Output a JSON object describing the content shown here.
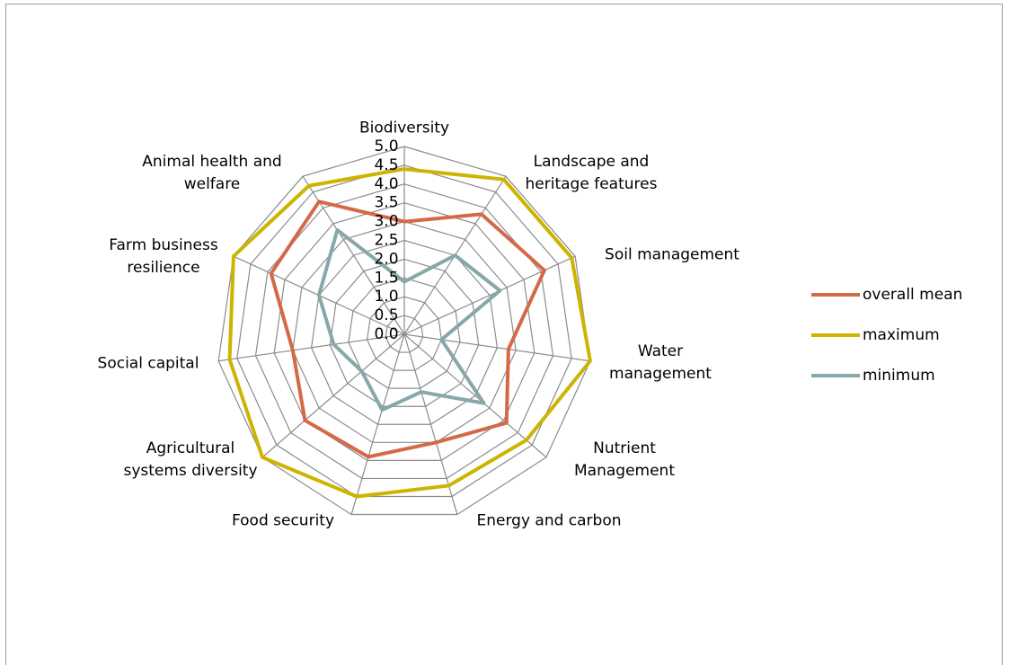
{
  "chart_data": {
    "type": "radar",
    "categories": [
      "Biodiversity",
      "Landscape and heritage features",
      "Soil management",
      "Water management",
      "Nutrient Management",
      "Energy and carbon",
      "Food security",
      "Agricultural systems diversity",
      "Social capital",
      "Farm business resilience",
      "Animal health and welfare"
    ],
    "series": [
      {
        "name": "overall mean",
        "color": "#d4694a",
        "values": [
          3.0,
          3.8,
          4.1,
          2.8,
          3.6,
          3.0,
          3.4,
          3.5,
          3.0,
          3.9,
          4.2
        ]
      },
      {
        "name": "maximum",
        "color": "#ccb400",
        "values": [
          4.4,
          4.9,
          4.9,
          5.0,
          4.3,
          4.2,
          4.5,
          5.0,
          4.7,
          5.0,
          4.7
        ]
      },
      {
        "name": "minimum",
        "color": "#86a8a8",
        "values": [
          1.4,
          2.5,
          2.8,
          1.0,
          2.8,
          1.6,
          2.1,
          1.5,
          1.9,
          2.5,
          3.3
        ]
      }
    ],
    "ylim": [
      0,
      5
    ],
    "yticks": [
      {
        "value": 0,
        "label": "0.0"
      },
      0.5,
      {
        "value": 1,
        "label": "1.0"
      },
      1.5,
      {
        "value": 2,
        "label": "2.0"
      },
      2.5,
      {
        "value": 3,
        "label": "3.0"
      },
      3.5,
      {
        "value": 4,
        "label": "4.0"
      },
      4.5,
      {
        "value": 5,
        "label": "5.0"
      }
    ],
    "grid": true,
    "legend": "right"
  }
}
